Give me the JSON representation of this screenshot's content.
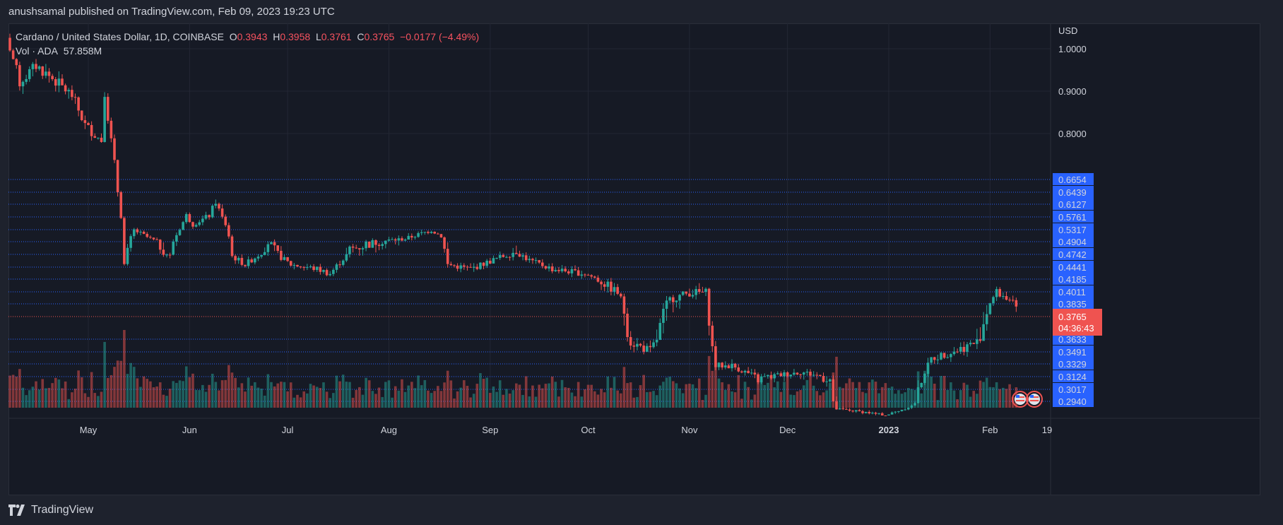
{
  "header": {
    "published": "anushsamal published on TradingView.com, Feb 09, 2023 19:23 UTC"
  },
  "legend": {
    "symbol": "Cardano / United States Dollar, 1D, COINBASE",
    "o_label": "O",
    "o_value": "0.3943",
    "h_label": "H",
    "h_value": "0.3958",
    "l_label": "L",
    "l_value": "0.3761",
    "c_label": "C",
    "c_value": "0.3765",
    "change": "−0.0177 (−4.49%)",
    "vol_label": "Vol · ADA",
    "vol_value": "57.858M"
  },
  "footer": {
    "brand": "TradingView"
  },
  "colors": {
    "up": "#26a69a",
    "down": "#ef5350",
    "bg": "#161a25",
    "grid": "#232734",
    "level": "#2962ff",
    "text": "#d1d4dc"
  },
  "chart_data": {
    "type": "candlestick",
    "currency_label": "USD",
    "y_ticks": [
      "1.0000",
      "0.9000",
      "0.8000"
    ],
    "y_tick_values": [
      1.0,
      0.9,
      0.8
    ],
    "level_labels": [
      "0.6654",
      "0.6439",
      "0.6127",
      "0.5761",
      "0.5317",
      "0.4904",
      "0.4742",
      "0.4441",
      "0.4185",
      "0.4011",
      "0.3835",
      "0.3633",
      "0.3491",
      "0.3329",
      "0.3124",
      "0.3017",
      "0.2940"
    ],
    "current_price": "0.3765",
    "countdown": "04:36:43",
    "x_labels": [
      "May",
      "Jun",
      "Jul",
      "Aug",
      "Sep",
      "Oct",
      "Nov",
      "Dec",
      "2023",
      "Feb",
      "19"
    ],
    "x_label_dates": [
      "2022-05-01",
      "2022-06-01",
      "2022-07-01",
      "2022-08-01",
      "2022-09-01",
      "2022-10-01",
      "2022-11-01",
      "2022-12-01",
      "2023-01-01",
      "2023-02-01",
      "2023-02-19"
    ],
    "key_points": [
      {
        "date": "2022-04-02",
        "close": 1.1
      },
      {
        "date": "2022-04-05",
        "close": 1.06
      },
      {
        "date": "2022-04-10",
        "close": 0.92
      },
      {
        "date": "2022-04-15",
        "close": 0.96
      },
      {
        "date": "2022-04-20",
        "close": 0.93
      },
      {
        "date": "2022-04-26",
        "close": 0.89
      },
      {
        "date": "2022-04-30",
        "close": 0.82
      },
      {
        "date": "2022-05-05",
        "close": 0.78
      },
      {
        "date": "2022-05-06",
        "close": 0.9
      },
      {
        "date": "2022-05-08",
        "close": 0.78
      },
      {
        "date": "2022-05-11",
        "close": 0.58
      },
      {
        "date": "2022-05-12",
        "close": 0.45
      },
      {
        "date": "2022-05-15",
        "close": 0.53
      },
      {
        "date": "2022-05-20",
        "close": 0.5
      },
      {
        "date": "2022-05-26",
        "close": 0.47
      },
      {
        "date": "2022-05-31",
        "close": 0.58
      },
      {
        "date": "2022-06-02",
        "close": 0.55
      },
      {
        "date": "2022-06-07",
        "close": 0.58
      },
      {
        "date": "2022-06-09",
        "close": 0.62
      },
      {
        "date": "2022-06-12",
        "close": 0.55
      },
      {
        "date": "2022-06-14",
        "close": 0.47
      },
      {
        "date": "2022-06-18",
        "close": 0.45
      },
      {
        "date": "2022-06-25",
        "close": 0.49
      },
      {
        "date": "2022-07-02",
        "close": 0.45
      },
      {
        "date": "2022-07-10",
        "close": 0.44
      },
      {
        "date": "2022-07-14",
        "close": 0.43
      },
      {
        "date": "2022-07-20",
        "close": 0.48
      },
      {
        "date": "2022-07-27",
        "close": 0.49
      },
      {
        "date": "2022-08-06",
        "close": 0.5
      },
      {
        "date": "2022-08-14",
        "close": 0.53
      },
      {
        "date": "2022-08-17",
        "close": 0.51
      },
      {
        "date": "2022-08-19",
        "close": 0.45
      },
      {
        "date": "2022-08-26",
        "close": 0.44
      },
      {
        "date": "2022-09-05",
        "close": 0.47
      },
      {
        "date": "2022-09-09",
        "close": 0.48
      },
      {
        "date": "2022-09-13",
        "close": 0.46
      },
      {
        "date": "2022-09-20",
        "close": 0.44
      },
      {
        "date": "2022-09-30",
        "close": 0.43
      },
      {
        "date": "2022-10-10",
        "close": 0.4
      },
      {
        "date": "2022-10-14",
        "close": 0.36
      },
      {
        "date": "2022-10-20",
        "close": 0.35
      },
      {
        "date": "2022-10-26",
        "close": 0.39
      },
      {
        "date": "2022-11-01",
        "close": 0.4
      },
      {
        "date": "2022-11-06",
        "close": 0.4
      },
      {
        "date": "2022-11-09",
        "close": 0.33
      },
      {
        "date": "2022-11-14",
        "close": 0.33
      },
      {
        "date": "2022-11-22",
        "close": 0.31
      },
      {
        "date": "2022-12-05",
        "close": 0.32
      },
      {
        "date": "2022-12-14",
        "close": 0.31
      },
      {
        "date": "2022-12-16",
        "close": 0.27
      },
      {
        "date": "2022-12-25",
        "close": 0.26
      },
      {
        "date": "2022-12-31",
        "close": 0.25
      },
      {
        "date": "2023-01-08",
        "close": 0.28
      },
      {
        "date": "2023-01-14",
        "close": 0.34
      },
      {
        "date": "2023-01-21",
        "close": 0.35
      },
      {
        "date": "2023-01-28",
        "close": 0.36
      },
      {
        "date": "2023-02-03",
        "close": 0.4
      },
      {
        "date": "2023-02-07",
        "close": 0.39
      },
      {
        "date": "2023-02-09",
        "close": 0.3765
      }
    ]
  }
}
